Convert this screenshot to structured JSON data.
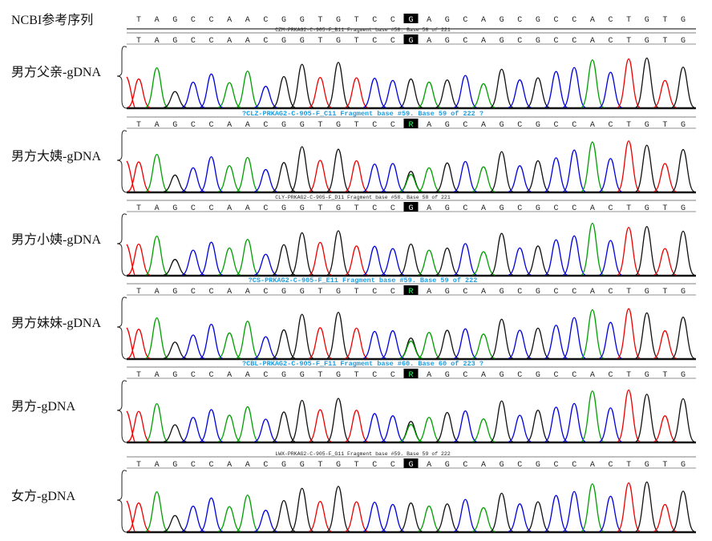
{
  "reference": {
    "label": "NCBI参考序列",
    "bases": [
      "T",
      "A",
      "G",
      "C",
      "C",
      "A",
      "A",
      "C",
      "G",
      "G",
      "T",
      "G",
      "T",
      "C",
      "C",
      "G",
      "A",
      "G",
      "C",
      "A",
      "G",
      "C",
      "G",
      "C",
      "C",
      "A",
      "C",
      "T",
      "G",
      "T",
      "G"
    ],
    "highlight_index": 15
  },
  "colors": {
    "A": "#00a000",
    "C": "#0000e0",
    "G": "#111111",
    "T": "#ee0000",
    "header_blue": "#1a9ee0",
    "header_black": "#222222"
  },
  "samples": [
    {
      "label": "男方父亲-gDNA",
      "header": "CZM-PRKAG2-C-905-F_B11 Fragment base #58. Base 58 of 221",
      "header_style": "black",
      "call": "G",
      "bases": [
        "T",
        "A",
        "G",
        "C",
        "C",
        "A",
        "A",
        "C",
        "G",
        "G",
        "T",
        "G",
        "T",
        "C",
        "C",
        "G",
        "A",
        "G",
        "C",
        "A",
        "G",
        "C",
        "G",
        "C",
        "C",
        "A",
        "C",
        "T",
        "G",
        "T",
        "G"
      ],
      "heterozygous": false
    },
    {
      "label": "男方大姨-gDNA",
      "header": "?CLZ-PRKAG2-C-905-F_C11 Fragment base #59. Base 59 of 222 ?",
      "header_style": "blue",
      "call": "R",
      "bases": [
        "T",
        "A",
        "G",
        "C",
        "C",
        "A",
        "A",
        "C",
        "G",
        "G",
        "T",
        "G",
        "T",
        "C",
        "C",
        "R",
        "A",
        "G",
        "C",
        "A",
        "G",
        "C",
        "G",
        "C",
        "C",
        "A",
        "C",
        "T",
        "G",
        "T",
        "G"
      ],
      "heterozygous": true
    },
    {
      "label": "男方小姨-gDNA",
      "header": "CLY-PRKAG2-C-905-F_D11 Fragment base #58. Base 58 of 221",
      "header_style": "black",
      "call": "G",
      "bases": [
        "T",
        "A",
        "G",
        "C",
        "C",
        "A",
        "A",
        "C",
        "G",
        "G",
        "T",
        "G",
        "T",
        "C",
        "C",
        "G",
        "A",
        "G",
        "C",
        "A",
        "G",
        "C",
        "G",
        "C",
        "C",
        "A",
        "C",
        "T",
        "G",
        "T",
        "G"
      ],
      "heterozygous": false
    },
    {
      "label": "男方妹妹-gDNA",
      "header": "?CS-PRKAG2-C-905-F_E11 Fragment base #59. Base 59 of 222",
      "header_style": "blue",
      "call": "R",
      "bases": [
        "T",
        "A",
        "G",
        "C",
        "C",
        "A",
        "A",
        "C",
        "G",
        "G",
        "T",
        "G",
        "T",
        "C",
        "C",
        "R",
        "A",
        "G",
        "C",
        "A",
        "G",
        "C",
        "G",
        "C",
        "C",
        "A",
        "C",
        "T",
        "G",
        "T",
        "G"
      ],
      "heterozygous": true
    },
    {
      "label": "男方-gDNA",
      "header": "?CBL-PRKAG2-C-905-F_F11 Fragment base #60. Base 60 of 223 ?",
      "header_style": "blue",
      "call": "R",
      "bases": [
        "T",
        "A",
        "G",
        "C",
        "C",
        "A",
        "A",
        "C",
        "G",
        "G",
        "T",
        "G",
        "T",
        "C",
        "C",
        "R",
        "A",
        "G",
        "C",
        "A",
        "G",
        "C",
        "G",
        "C",
        "C",
        "A",
        "C",
        "T",
        "G",
        "T",
        "G"
      ],
      "heterozygous": true
    },
    {
      "label": "女方-gDNA",
      "header": "LWX-PRKAG2-C-905-F_G11 Fragment base #59. Base 59 of 222",
      "header_style": "black",
      "call": "G",
      "bases": [
        "T",
        "A",
        "G",
        "C",
        "C",
        "A",
        "A",
        "C",
        "G",
        "G",
        "T",
        "G",
        "T",
        "C",
        "C",
        "G",
        "A",
        "G",
        "C",
        "A",
        "G",
        "C",
        "G",
        "C",
        "C",
        "A",
        "C",
        "T",
        "G",
        "T",
        "G"
      ],
      "heterozygous": false
    }
  ]
}
